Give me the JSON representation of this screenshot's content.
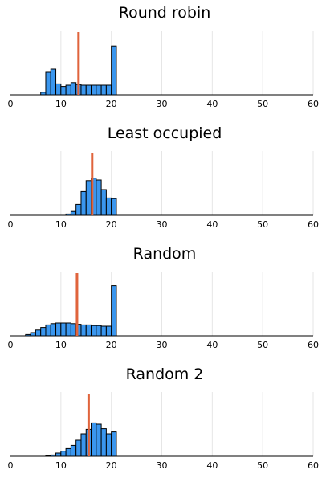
{
  "chart_data": [
    {
      "type": "bar",
      "title": "Round robin",
      "xlim": [
        0,
        60
      ],
      "xticks": [
        0,
        10,
        20,
        30,
        40,
        50,
        60
      ],
      "bin_width": 1,
      "bin_start": 6,
      "values": [
        0.04,
        0.35,
        0.4,
        0.17,
        0.13,
        0.15,
        0.19,
        0.16,
        0.15,
        0.15,
        0.15,
        0.15,
        0.15,
        0.15,
        0.76
      ],
      "mean": 13.5,
      "ylim": [
        0,
        1
      ],
      "grid": true
    },
    {
      "type": "bar",
      "title": "Least occupied",
      "xlim": [
        0,
        60
      ],
      "xticks": [
        0,
        10,
        20,
        30,
        40,
        50,
        60
      ],
      "bin_width": 1,
      "bin_start": 11,
      "values": [
        0.02,
        0.06,
        0.17,
        0.37,
        0.54,
        0.58,
        0.55,
        0.4,
        0.27,
        0.26
      ],
      "mean": 16.2,
      "ylim": [
        0,
        1
      ],
      "grid": true
    },
    {
      "type": "bar",
      "title": "Random",
      "xlim": [
        0,
        60
      ],
      "xticks": [
        0,
        10,
        20,
        30,
        40,
        50,
        60
      ],
      "bin_width": 1,
      "bin_start": 3,
      "values": [
        0.02,
        0.05,
        0.09,
        0.13,
        0.17,
        0.19,
        0.2,
        0.2,
        0.2,
        0.19,
        0.18,
        0.17,
        0.17,
        0.16,
        0.16,
        0.15,
        0.15,
        0.78
      ],
      "mean": 13.2,
      "ylim": [
        0,
        1
      ],
      "grid": true
    },
    {
      "type": "bar",
      "title": "Random 2",
      "xlim": [
        0,
        60
      ],
      "xticks": [
        0,
        10,
        20,
        30,
        40,
        50,
        60
      ],
      "bin_width": 1,
      "bin_start": 7,
      "values": [
        0.01,
        0.02,
        0.05,
        0.08,
        0.12,
        0.17,
        0.25,
        0.35,
        0.42,
        0.52,
        0.5,
        0.43,
        0.35,
        0.38
      ],
      "mean": 15.5,
      "ylim": [
        0,
        1
      ],
      "grid": true
    }
  ]
}
